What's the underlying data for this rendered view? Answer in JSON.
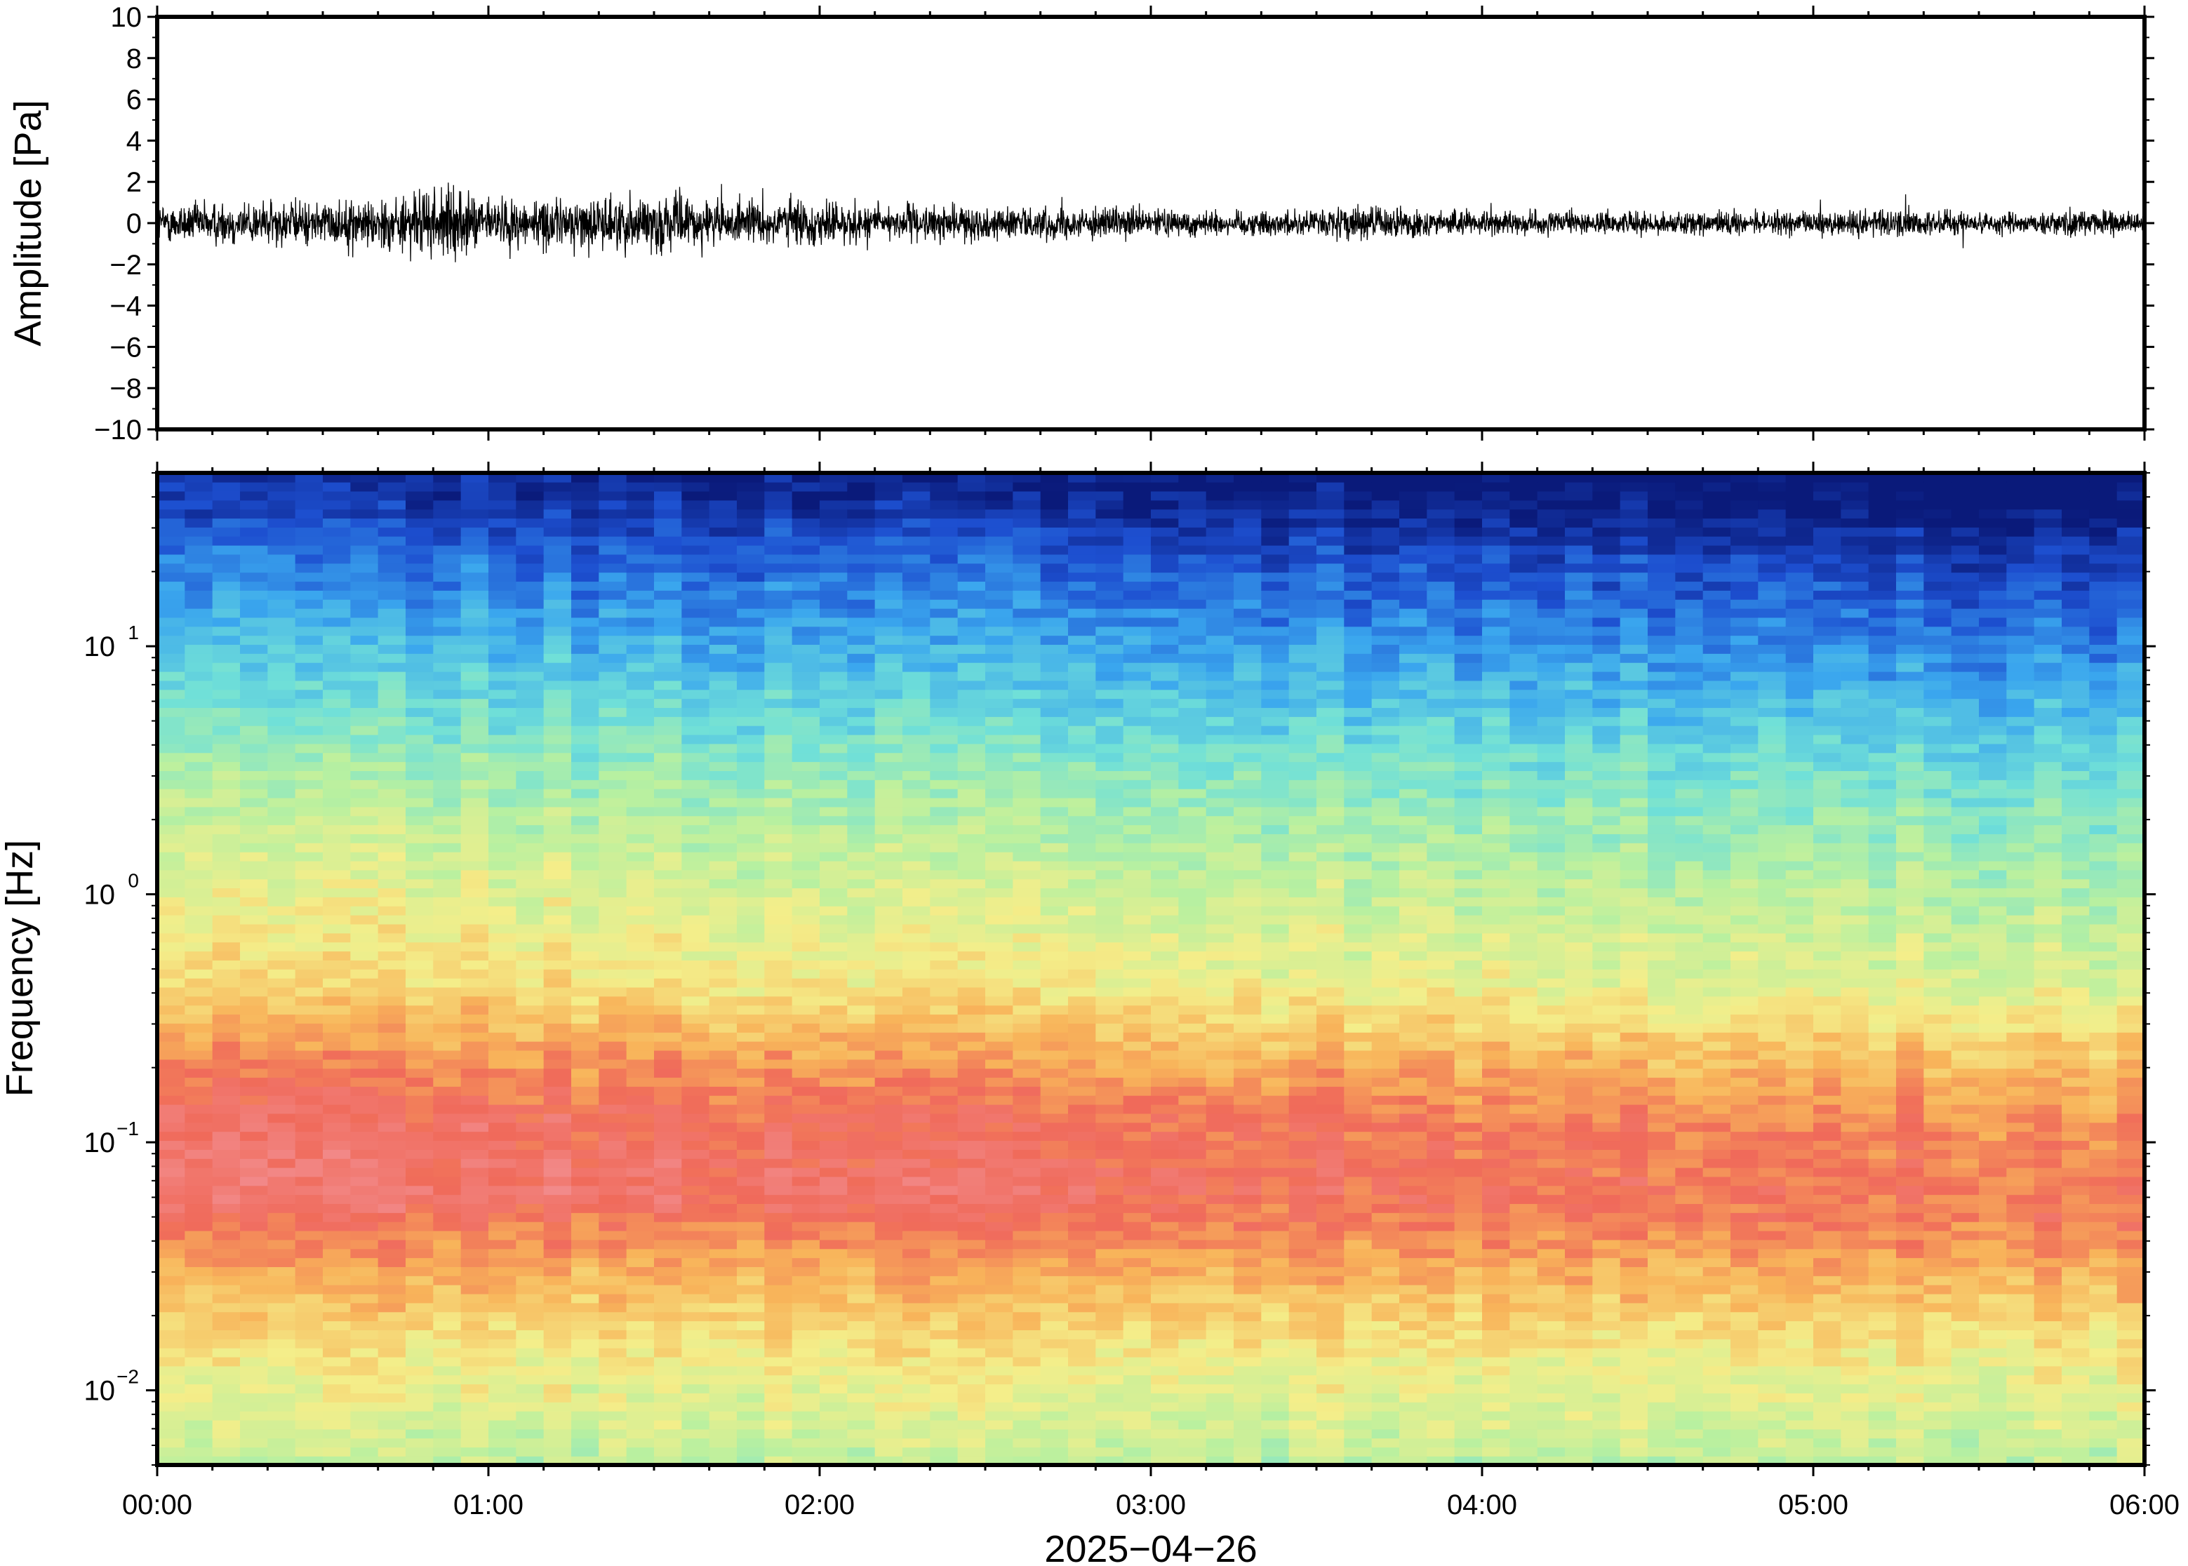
{
  "chart_data": [
    {
      "type": "line",
      "panel": "waveform",
      "title": "",
      "xlabel": "",
      "ylabel": "Amplitude [Pa]",
      "ylim": [
        -10,
        10
      ],
      "yticks": [
        "10",
        "8",
        "6",
        "4",
        "2",
        "0",
        "−2",
        "−4",
        "−6",
        "−8",
        "−10"
      ],
      "ytick_values": [
        10,
        8,
        6,
        4,
        2,
        0,
        -2,
        -4,
        -6,
        -8,
        -10
      ],
      "xlim_hours": [
        0,
        6
      ],
      "series": [
        {
          "envelope_hours": [
            0,
            0.25,
            0.5,
            0.75,
            0.85,
            1.0,
            1.25,
            1.5,
            1.75,
            1.9,
            2.25,
            2.5,
            2.75,
            3.0,
            3.25,
            3.5,
            3.6,
            4.0,
            4.5,
            5.0,
            5.2,
            5.5,
            5.8,
            6.0
          ],
          "envelope_amplitude": [
            1.5,
            1.8,
            1.7,
            2.2,
            2.8,
            2.0,
            1.9,
            2.3,
            1.6,
            1.9,
            1.4,
            1.3,
            1.2,
            1.1,
            1.0,
            1.0,
            1.4,
            0.9,
            0.9,
            0.9,
            1.2,
            0.9,
            1.0,
            0.9
          ],
          "color": "#000000"
        }
      ],
      "grid": false
    },
    {
      "type": "heatmap",
      "panel": "spectrogram",
      "title": "",
      "xlabel": "2025−04−26",
      "ylabel": "Frequency [Hz]",
      "yscale": "log",
      "ylim": [
        0.005,
        50
      ],
      "yticks": [
        {
          "base": "10",
          "exp": "1",
          "value": 10
        },
        {
          "base": "10",
          "exp": "0",
          "value": 1
        },
        {
          "base": "10",
          "exp": "−1",
          "value": 0.1
        },
        {
          "base": "10",
          "exp": "−2",
          "value": 0.01
        }
      ],
      "xticks": [
        "00:00",
        "01:00",
        "02:00",
        "03:00",
        "04:00",
        "05:00",
        "06:00"
      ],
      "xtick_hours": [
        0,
        1,
        2,
        3,
        4,
        5,
        6
      ],
      "colormap": "rainbow",
      "colormap_stops": [
        "#0a1a7a",
        "#1d4fd0",
        "#3aa6ee",
        "#70e0d8",
        "#b8f0a0",
        "#f4ee8a",
        "#f8b45a",
        "#f06a5a",
        "#f28a8a"
      ],
      "grid": false
    }
  ]
}
